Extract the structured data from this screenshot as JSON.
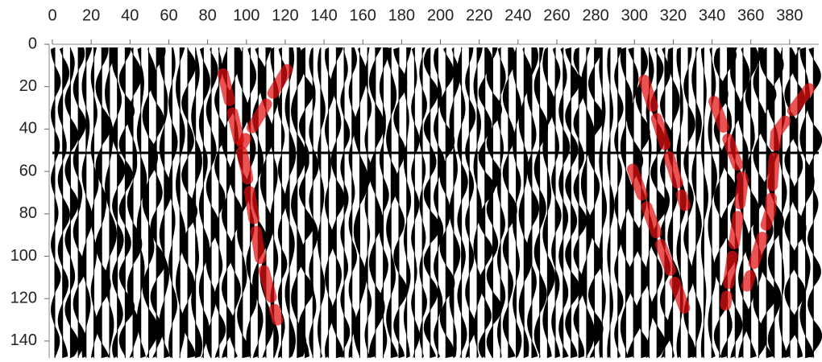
{
  "chart_data": {
    "type": "line",
    "xlim": [
      0,
      395
    ],
    "ylim": [
      0,
      148
    ],
    "xticks": [
      0,
      20,
      40,
      60,
      80,
      100,
      120,
      140,
      160,
      180,
      200,
      220,
      240,
      260,
      280,
      300,
      320,
      340,
      360,
      380
    ],
    "yticks": [
      0,
      20,
      40,
      60,
      80,
      100,
      120,
      140
    ],
    "series": [
      {
        "color": "#e01010",
        "x": [
          88,
          100,
          107,
          116
        ],
        "values": [
          14,
          60,
          100,
          130
        ]
      },
      {
        "color": "#e01010",
        "x": [
          121,
          98
        ],
        "values": [
          12,
          47
        ]
      },
      {
        "color": "#e01010",
        "x": [
          305,
          326
        ],
        "values": [
          17,
          76
        ]
      },
      {
        "color": "#e01010",
        "x": [
          299,
          326
        ],
        "values": [
          59,
          125
        ]
      },
      {
        "color": "#e01010",
        "x": [
          341,
          356,
          347
        ],
        "values": [
          27,
          64,
          123
        ]
      },
      {
        "color": "#e01010",
        "x": [
          390,
          373,
          370,
          358
        ],
        "values": [
          21,
          42,
          79,
          114
        ]
      }
    ]
  }
}
